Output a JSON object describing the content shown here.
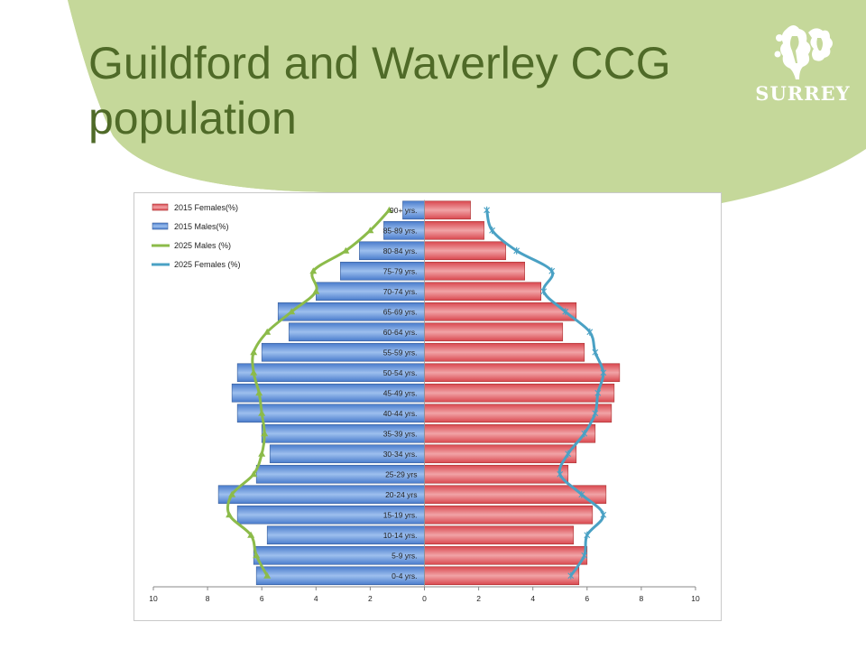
{
  "slide": {
    "title_lines": [
      "Guildford and Waverley CCG",
      "population"
    ],
    "logo_text": "SURREY",
    "logo_icon": "oak-leaf-icon",
    "colors": {
      "title": "#4f6a28",
      "background_shape": "#c5d89a",
      "logo": "#ffffff"
    }
  },
  "chart_data": {
    "type": "bar",
    "orientation": "horizontal",
    "layout": "population-pyramid",
    "categories": [
      "0-4 yrs.",
      "5-9 yrs.",
      "10-14 yrs.",
      "15-19 yrs.",
      "20-24 yrs",
      "25-29 yrs",
      "30-34 yrs.",
      "35-39 yrs.",
      "40-44 yrs.",
      "45-49 yrs.",
      "50-54 yrs.",
      "55-59 yrs.",
      "60-64 yrs.",
      "65-69 yrs.",
      "70-74 yrs.",
      "75-79 yrs.",
      "80-84 yrs.",
      "85-89 yrs.",
      "90+ yrs."
    ],
    "xlim": [
      -10,
      10
    ],
    "xticks": [
      -10,
      -8,
      -6,
      -4,
      -2,
      0,
      2,
      4,
      6,
      8,
      10
    ],
    "xtick_labels": [
      "10",
      "8",
      "6",
      "4",
      "2",
      "0",
      "2",
      "4",
      "6",
      "8",
      "10"
    ],
    "series": [
      {
        "name": "2015 Females(%)",
        "kind": "bar",
        "side": "right",
        "color": "#e8737a",
        "values": [
          5.7,
          6.0,
          5.5,
          6.2,
          6.7,
          5.3,
          5.6,
          6.3,
          6.9,
          7.0,
          7.2,
          5.9,
          5.1,
          5.6,
          4.3,
          3.7,
          3.0,
          2.2,
          1.7
        ]
      },
      {
        "name": "2015 Males(%)",
        "kind": "bar",
        "side": "left",
        "color": "#6f9ee0",
        "values": [
          6.2,
          6.3,
          5.8,
          6.9,
          7.6,
          6.2,
          5.7,
          6.0,
          6.9,
          7.1,
          6.9,
          6.0,
          5.0,
          5.4,
          4.0,
          3.1,
          2.4,
          1.5,
          0.8
        ]
      },
      {
        "name": "2025 Males (%)",
        "kind": "line",
        "side": "left",
        "color": "#8cbb4a",
        "marker": "triangle",
        "values": [
          5.8,
          6.2,
          6.4,
          7.2,
          7.1,
          6.3,
          6.0,
          5.9,
          6.0,
          6.1,
          6.3,
          6.3,
          5.8,
          4.9,
          4.0,
          4.1,
          2.9,
          2.0,
          1.3
        ]
      },
      {
        "name": "2025 Females (%)",
        "kind": "line",
        "side": "right",
        "color": "#4aa1c4",
        "marker": "star",
        "values": [
          5.4,
          5.9,
          6.0,
          6.6,
          5.8,
          5.0,
          5.3,
          5.9,
          6.3,
          6.4,
          6.6,
          6.3,
          6.1,
          5.2,
          4.4,
          4.7,
          3.4,
          2.5,
          2.3
        ]
      }
    ],
    "legend_position": "top-left",
    "grid": false
  }
}
